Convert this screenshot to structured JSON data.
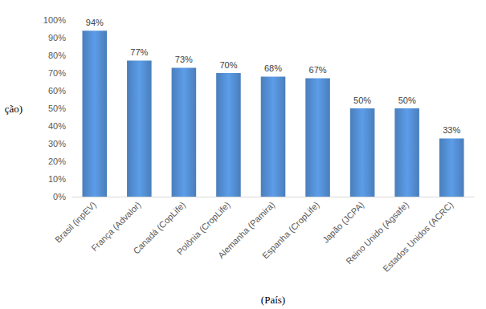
{
  "chart_data": {
    "type": "bar",
    "xlabel": "(País)",
    "ylabel": "ção)",
    "categories": [
      "Brasil (inpEV)",
      "França (Advalor)",
      "Canadá (CopLife)",
      "Polônia (CropLife)",
      "Alemanha (Pamira)",
      "Espanha (CropLife)",
      "Japão (JCPA)",
      "Reino Unido (Agsafe)",
      "Estados Unidos (ACRC)"
    ],
    "values": [
      94,
      77,
      73,
      70,
      68,
      67,
      50,
      50,
      33
    ],
    "value_labels": [
      "94%",
      "77%",
      "73%",
      "70%",
      "68%",
      "67%",
      "50%",
      "50%",
      "33%"
    ],
    "color": "#4a7ebb",
    "ylim": [
      0,
      100
    ],
    "yticks": [
      {
        "value": 0,
        "label": "0%"
      },
      {
        "value": 10,
        "label": "10%"
      },
      {
        "value": 20,
        "label": "20%"
      },
      {
        "value": 30,
        "label": "30%"
      },
      {
        "value": 40,
        "label": "40%"
      },
      {
        "value": 50,
        "label": "50%"
      },
      {
        "value": 60,
        "label": "60%"
      },
      {
        "value": 70,
        "label": "70%"
      },
      {
        "value": 80,
        "label": "80%"
      },
      {
        "value": 90,
        "label": "90%"
      },
      {
        "value": 100,
        "label": "100%"
      }
    ],
    "grid": false,
    "data_labels": true
  }
}
